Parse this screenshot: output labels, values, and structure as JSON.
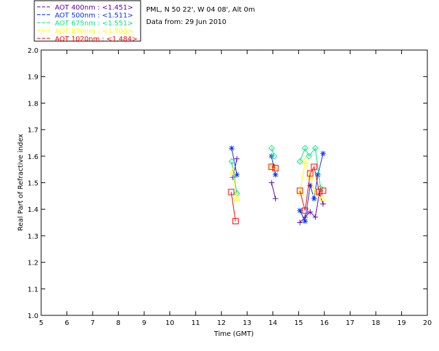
{
  "chart_data": {
    "type": "line",
    "header": [
      "PML, N 50 22', W 04 08', Alt 0m",
      "Data from: 29 Jun 2010"
    ],
    "xlabel": "Time (GMT)",
    "ylabel": "Real Part of Refractive index",
    "xlim": [
      5,
      20
    ],
    "ylim": [
      1.0,
      2.0
    ],
    "xticks": [
      "5",
      "6",
      "7",
      "8",
      "9",
      "10",
      "11",
      "12",
      "13",
      "14",
      "15",
      "16",
      "17",
      "18",
      "19",
      "20"
    ],
    "yticks": [
      "1.0",
      "1.1",
      "1.2",
      "1.3",
      "1.4",
      "1.5",
      "1.6",
      "1.7",
      "1.8",
      "1.9",
      "2.0"
    ],
    "legend_position": "top-left-outside",
    "series": [
      {
        "name": "AOT  400nm : <1.451>",
        "color": "#5a00a8",
        "marker": "plus",
        "x": [
          12.45,
          12.6,
          13.95,
          14.1,
          15.05,
          15.25,
          15.45,
          15.65,
          15.8,
          15.95
        ],
        "y": [
          1.52,
          1.59,
          1.5,
          1.44,
          1.35,
          1.37,
          1.39,
          1.37,
          1.46,
          1.42
        ]
      },
      {
        "name": "AOT  500nm : <1.511>",
        "color": "#0030ff",
        "marker": "asterisk",
        "x": [
          12.4,
          12.6,
          13.95,
          14.1,
          15.05,
          15.25,
          15.45,
          15.6,
          15.75,
          15.95
        ],
        "y": [
          1.63,
          1.53,
          1.6,
          1.53,
          1.395,
          1.355,
          1.49,
          1.44,
          1.53,
          1.61
        ]
      },
      {
        "name": "AOT  675nm : <1.551>",
        "color": "#00e880",
        "marker": "diamond",
        "x": [
          12.4,
          12.6,
          13.95,
          14.05,
          15.05,
          15.25,
          15.4,
          15.65,
          15.85
        ],
        "y": [
          1.58,
          1.46,
          1.63,
          1.6,
          1.58,
          1.63,
          1.6,
          1.63,
          1.48
        ]
      },
      {
        "name": "AOT  870nm : <1.500>",
        "color": "#ffff00",
        "marker": "triangle",
        "x": [
          12.45,
          12.6,
          13.95,
          14.1,
          15.05,
          15.25,
          15.45,
          15.65,
          15.9
        ],
        "y": [
          1.54,
          1.44,
          1.56,
          1.55,
          1.46,
          1.58,
          1.52,
          1.46,
          1.44
        ]
      },
      {
        "name": "AOT 1020nm : <1.484>",
        "color": "#ff0000",
        "marker": "square",
        "x": [
          12.38,
          12.55,
          13.95,
          14.1,
          15.05,
          15.25,
          15.45,
          15.6,
          15.8,
          15.95
        ],
        "y": [
          1.465,
          1.355,
          1.56,
          1.555,
          1.47,
          1.395,
          1.535,
          1.56,
          1.465,
          1.47
        ]
      }
    ]
  }
}
